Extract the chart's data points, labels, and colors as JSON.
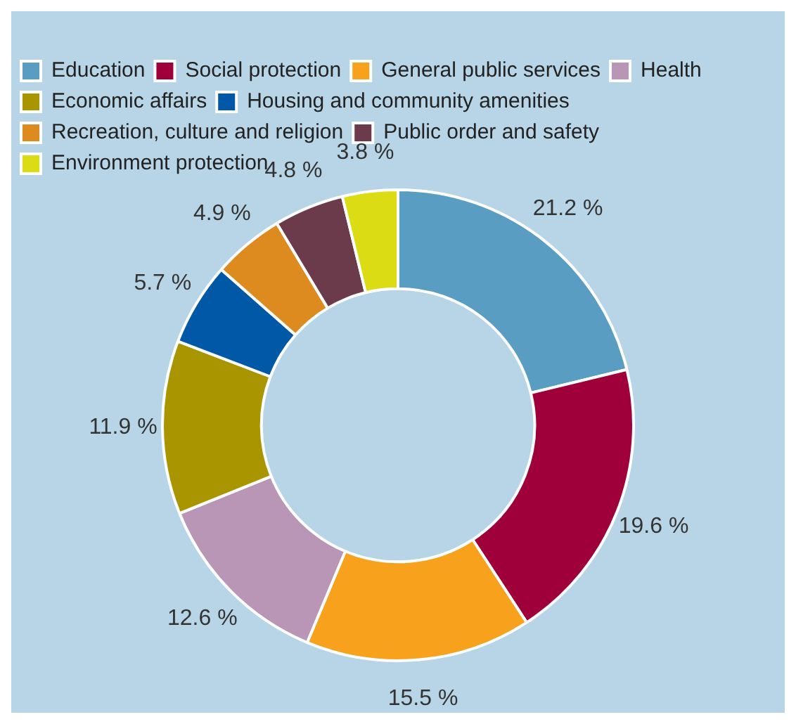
{
  "chart_data": {
    "type": "donut",
    "categories": [
      "Education",
      "Social protection",
      "General public services",
      "Health",
      "Economic affairs",
      "Housing and community amenities",
      "Recreation, culture and religion",
      "Public order and safety",
      "Environment protection"
    ],
    "values": [
      21.2,
      19.6,
      15.5,
      12.6,
      11.9,
      5.7,
      4.9,
      4.8,
      3.8
    ],
    "colors": [
      "#5a9dc2",
      "#a0003a",
      "#f7a11d",
      "#b996b5",
      "#a89500",
      "#0058a6",
      "#dd8a1e",
      "#6b3a4b",
      "#dcdc14"
    ],
    "value_labels": [
      "21.2 %",
      "19.6 %",
      "15.5 %",
      "12.6 %",
      "11.9 %",
      "5.7 %",
      "4.9 %",
      "4.8 %",
      "3.8 %"
    ],
    "legend": "top left"
  }
}
